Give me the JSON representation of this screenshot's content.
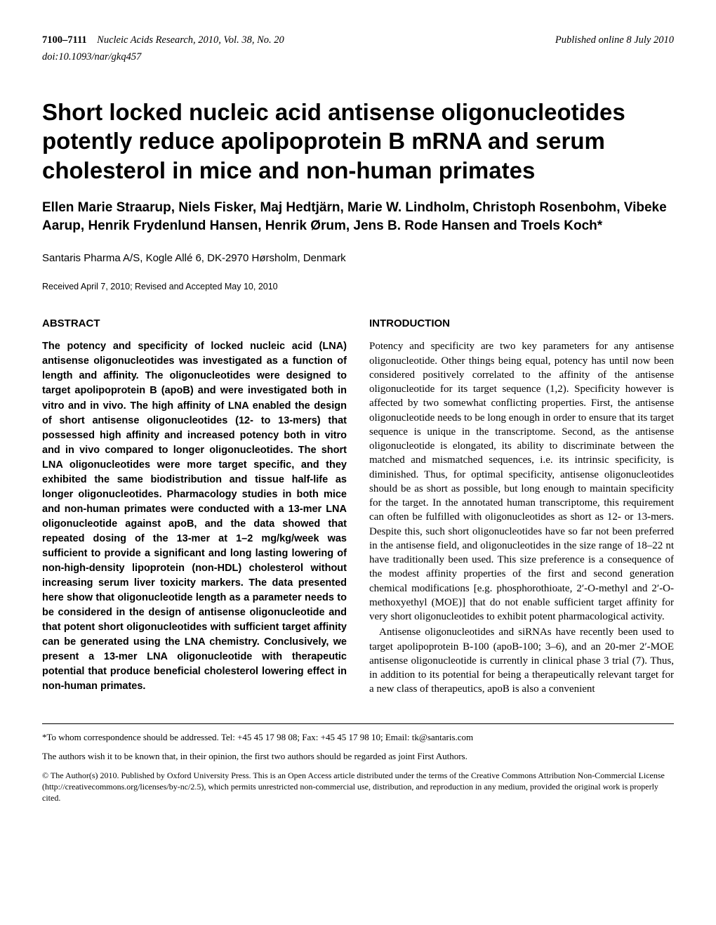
{
  "header": {
    "page_range": "7100–7111",
    "journal": "Nucleic Acids Research, 2010, Vol. 38, No. 20",
    "published": "Published online 8 July 2010",
    "doi": "doi:10.1093/nar/gkq457"
  },
  "title": "Short locked nucleic acid antisense oligonucleotides potently reduce apolipoprotein B mRNA and serum cholesterol in mice and non-human primates",
  "authors": "Ellen Marie Straarup, Niels Fisker, Maj Hedtjärn, Marie W. Lindholm, Christoph Rosenbohm, Vibeke Aarup, Henrik Frydenlund Hansen, Henrik Ørum, Jens B. Rode Hansen and Troels Koch*",
  "affiliation": "Santaris Pharma A/S, Kogle Allé 6, DK-2970 Hørsholm, Denmark",
  "dates": "Received April 7, 2010; Revised and Accepted May 10, 2010",
  "abstract_heading": "ABSTRACT",
  "abstract": "The potency and specificity of locked nucleic acid (LNA) antisense oligonucleotides was investigated as a function of length and affinity. The oligonucleotides were designed to target apolipoprotein B (apoB) and were investigated both in vitro and in vivo. The high affinity of LNA enabled the design of short antisense oligonucleotides (12- to 13-mers) that possessed high affinity and increased potency both in vitro and in vivo compared to longer oligonucleotides. The short LNA oligonucleotides were more target specific, and they exhibited the same biodistribution and tissue half-life as longer oligonucleotides. Pharmacology studies in both mice and non-human primates were conducted with a 13-mer LNA oligonucleotide against apoB, and the data showed that repeated dosing of the 13-mer at 1–2 mg/kg/week was sufficient to provide a significant and long lasting lowering of non-high-density lipoprotein (non-HDL) cholesterol without increasing serum liver toxicity markers. The data presented here show that oligonucleotide length as a parameter needs to be considered in the design of antisense oligonucleotide and that potent short oligonucleotides with sufficient target affinity can be generated using the LNA chemistry. Conclusively, we present a 13-mer LNA oligonucleotide with therapeutic potential that produce beneficial cholesterol lowering effect in non-human primates.",
  "intro_heading": "INTRODUCTION",
  "intro_p1": "Potency and specificity are two key parameters for any antisense oligonucleotide. Other things being equal, potency has until now been considered positively correlated to the affinity of the antisense oligonucleotide for its target sequence (1,2). Specificity however is affected by two somewhat conflicting properties. First, the antisense oligonucleotide needs to be long enough in order to ensure that its target sequence is unique in the transcriptome. Second, as the antisense oligonucleotide is elongated, its ability to discriminate between the matched and mismatched sequences, i.e. its intrinsic specificity, is diminished. Thus, for optimal specificity, antisense oligonucleotides should be as short as possible, but long enough to maintain specificity for the target. In the annotated human transcriptome, this requirement can often be fulfilled with oligonucleotides as short as 12- or 13-mers. Despite this, such short oligonucleotides have so far not been preferred in the antisense field, and oligonucleotides in the size range of 18–22 nt have traditionally been used. This size preference is a consequence of the modest affinity properties of the first and second generation chemical modifications [e.g. phosphorothioate, 2′-O-methyl and 2′-O-methoxyethyl (MOE)] that do not enable sufficient target affinity for very short oligonucleotides to exhibit potent pharmacological activity.",
  "intro_p2": "Antisense oligonucleotides and siRNAs have recently been used to target apolipoprotein B-100 (apoB-100; 3–6), and an 20-mer 2′-MOE antisense oligonucleotide is currently in clinical phase 3 trial (7). Thus, in addition to its potential for being a therapeutically relevant target for a new class of therapeutics, apoB is also a convenient",
  "footer": {
    "correspondence": "*To whom correspondence should be addressed. Tel: +45 45 17 98 08; Fax: +45 45 17 98 10; Email: tk@santaris.com",
    "author_note": "The authors wish it to be known that, in their opinion, the first two authors should be regarded as joint First Authors.",
    "copyright": "© The Author(s) 2010. Published by Oxford University Press.\nThis is an Open Access article distributed under the terms of the Creative Commons Attribution Non-Commercial License (http://creativecommons.org/licenses/by-nc/2.5), which permits unrestricted non-commercial use, distribution, and reproduction in any medium, provided the original work is properly cited."
  }
}
